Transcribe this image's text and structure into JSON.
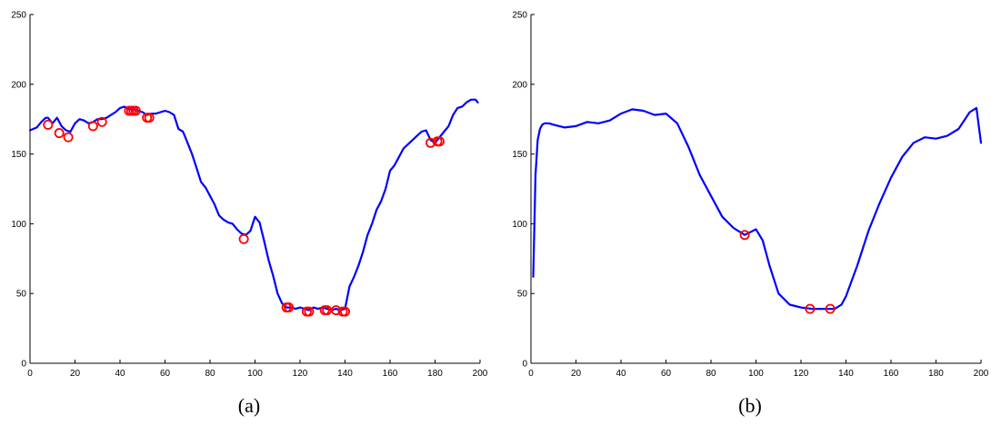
{
  "chart_data": [
    {
      "type": "line",
      "caption": "(a)",
      "xlim": [
        0,
        200
      ],
      "ylim": [
        0,
        250
      ],
      "xticks": [
        "0",
        "20",
        "40",
        "60",
        "80",
        "100",
        "120",
        "140",
        "160",
        "180",
        "200"
      ],
      "yticks": [
        "0",
        "50",
        "100",
        "150",
        "200",
        "250"
      ],
      "grid": false,
      "line_color": "#0000ff",
      "marker_color": "#ff0000",
      "series": [
        {
          "x": [
            0,
            3,
            5,
            7,
            8,
            10,
            12,
            14,
            16,
            18,
            20,
            22,
            24,
            26,
            28,
            30,
            32,
            34,
            36,
            38,
            40,
            42,
            44,
            46,
            48,
            50,
            52,
            54,
            56,
            58,
            60,
            62,
            64,
            66,
            68,
            70,
            72,
            74,
            76,
            78,
            80,
            82,
            84,
            86,
            88,
            90,
            92,
            94,
            96,
            98,
            100,
            102,
            104,
            106,
            108,
            110,
            112,
            114,
            116,
            118,
            120,
            122,
            124,
            126,
            128,
            130,
            132,
            134,
            136,
            138,
            140,
            142,
            144,
            146,
            148,
            150,
            152,
            154,
            156,
            158,
            160,
            162,
            164,
            166,
            168,
            170,
            172,
            174,
            176,
            178,
            180,
            182,
            184,
            186,
            188,
            190,
            192,
            194,
            196,
            198,
            199
          ],
          "y": [
            167,
            169,
            173,
            176,
            176,
            172,
            176,
            170,
            167,
            166,
            172,
            175,
            174,
            172,
            173,
            175,
            175,
            176,
            178,
            180,
            183,
            184,
            182,
            182,
            181,
            180,
            178,
            179,
            179,
            180,
            181,
            180,
            178,
            168,
            166,
            158,
            150,
            140,
            130,
            126,
            120,
            114,
            106,
            103,
            101,
            100,
            96,
            93,
            92,
            95,
            105,
            101,
            88,
            74,
            63,
            50,
            43,
            40,
            40,
            39,
            40,
            39,
            38,
            40,
            39,
            40,
            39,
            38,
            39,
            38,
            39,
            55,
            62,
            70,
            80,
            92,
            100,
            110,
            116,
            125,
            138,
            142,
            148,
            154,
            157,
            160,
            163,
            166,
            167,
            160,
            158,
            162,
            166,
            170,
            178,
            183,
            184,
            187,
            189,
            189,
            187
          ]
        }
      ],
      "markers": {
        "x": [
          8,
          13,
          17,
          28,
          32,
          44,
          45,
          46,
          47,
          52,
          53,
          95,
          114,
          115,
          123,
          124,
          131,
          132,
          136,
          139,
          140,
          178,
          181,
          182
        ],
        "y": [
          171,
          165,
          162,
          170,
          173,
          181,
          181,
          181,
          181,
          176,
          176,
          89,
          40,
          40,
          37,
          37,
          38,
          38,
          38,
          37,
          37,
          158,
          159,
          159
        ]
      }
    },
    {
      "type": "line",
      "caption": "(b)",
      "xlim": [
        0,
        200
      ],
      "ylim": [
        0,
        250
      ],
      "xticks": [
        "0",
        "20",
        "40",
        "60",
        "80",
        "100",
        "120",
        "140",
        "160",
        "180",
        "200"
      ],
      "yticks": [
        "0",
        "50",
        "100",
        "150",
        "200",
        "250"
      ],
      "grid": false,
      "line_color": "#0000ff",
      "marker_color": "#ff0000",
      "series": [
        {
          "x": [
            1,
            2,
            3,
            4,
            5,
            6,
            8,
            10,
            15,
            20,
            25,
            30,
            35,
            40,
            45,
            50,
            55,
            60,
            65,
            70,
            75,
            80,
            85,
            90,
            95,
            100,
            103,
            106,
            110,
            115,
            120,
            125,
            130,
            135,
            138,
            140,
            145,
            150,
            155,
            160,
            165,
            170,
            175,
            180,
            185,
            190,
            195,
            198,
            200
          ],
          "y": [
            62,
            135,
            160,
            168,
            171,
            172,
            172,
            171,
            169,
            170,
            173,
            172,
            174,
            179,
            182,
            181,
            178,
            179,
            172,
            155,
            135,
            120,
            105,
            97,
            92,
            96,
            88,
            70,
            50,
            42,
            40,
            39,
            39,
            39,
            42,
            48,
            70,
            95,
            115,
            133,
            148,
            158,
            162,
            161,
            163,
            168,
            180,
            183,
            158
          ]
        }
      ],
      "markers": {
        "x": [
          95,
          124,
          133
        ],
        "y": [
          92,
          39,
          39
        ]
      }
    }
  ]
}
